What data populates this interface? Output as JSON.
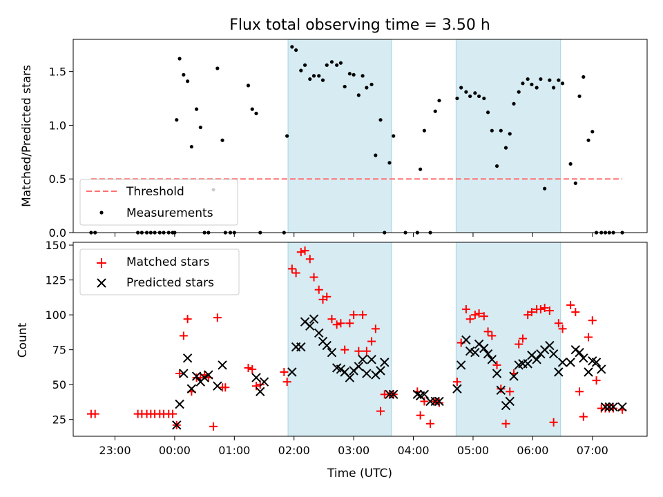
{
  "chart_data": [
    {
      "type": "scatter",
      "title": "Flux total observing time = 3.50 h",
      "xlabel": "",
      "ylabel": "Matched/Predicted stars",
      "xlim": [
        "22:18",
        "07:55"
      ],
      "ylim": [
        0,
        1.8
      ],
      "x_ticks": [
        "23:00",
        "00:00",
        "01:00",
        "02:00",
        "03:00",
        "04:00",
        "05:00",
        "06:00",
        "07:00"
      ],
      "y_ticks": [
        "0.0",
        "0.5",
        "1.0",
        "1.5"
      ],
      "shaded_intervals": [
        [
          "01:54",
          "03:38"
        ],
        [
          "04:43",
          "06:28"
        ]
      ],
      "shade_color": "#add8e6",
      "legend": {
        "position": "lower-left",
        "entries": [
          "Threshold",
          "Measurements"
        ]
      },
      "series": [
        {
          "name": "Threshold",
          "kind": "dashed-line",
          "color": "#ff7070",
          "x": [
            "22:36",
            "07:30"
          ],
          "values": [
            0.5,
            0.5
          ]
        },
        {
          "name": "Measurements",
          "kind": "points",
          "color": "#000000",
          "x": [
            "22:36",
            "22:40",
            "23:23",
            "23:27",
            "23:32",
            "23:36",
            "23:40",
            "23:45",
            "23:49",
            "23:54",
            "23:58",
            "00:02",
            "00:00",
            "00:05",
            "00:09",
            "00:13",
            "00:17",
            "00:22",
            "00:26",
            "00:30",
            "00:34",
            "00:39",
            "00:43",
            "00:48",
            "00:51",
            "00:56",
            "01:00",
            "01:14",
            "01:18",
            "01:22",
            "01:26",
            "01:50",
            "01:53",
            "01:58",
            "02:02",
            "02:07",
            "02:11",
            "02:16",
            "02:20",
            "02:25",
            "02:29",
            "02:33",
            "02:38",
            "02:43",
            "02:47",
            "02:51",
            "02:56",
            "03:00",
            "03:05",
            "03:09",
            "03:13",
            "03:18",
            "03:22",
            "03:27",
            "03:31",
            "03:36",
            "03:40",
            "03:52",
            "04:04",
            "04:07",
            "04:11",
            "04:17",
            "04:22",
            "04:26",
            "04:44",
            "04:48",
            "04:53",
            "04:57",
            "05:02",
            "05:06",
            "05:11",
            "05:15",
            "05:19",
            "05:24",
            "05:28",
            "05:33",
            "05:37",
            "05:41",
            "05:46",
            "05:50",
            "05:55",
            "05:59",
            "06:04",
            "06:08",
            "06:12",
            "06:17",
            "06:21",
            "06:26",
            "06:30",
            "06:38",
            "06:43",
            "06:47",
            "06:51",
            "06:56",
            "07:00",
            "07:04",
            "07:09",
            "07:13",
            "07:17",
            "07:21",
            "07:30"
          ],
          "values": [
            0.0,
            0.0,
            0.0,
            0.0,
            0.0,
            0.0,
            0.0,
            0.0,
            0.0,
            0.0,
            0.0,
            1.05,
            0.0,
            1.62,
            1.47,
            1.41,
            0.8,
            1.15,
            0.98,
            0.0,
            0.0,
            0.4,
            1.53,
            0.86,
            0.0,
            0.0,
            0.0,
            1.37,
            1.15,
            1.11,
            0.0,
            0.0,
            0.9,
            1.73,
            1.7,
            1.51,
            1.56,
            1.43,
            1.46,
            1.46,
            1.42,
            1.56,
            1.59,
            1.56,
            1.58,
            1.36,
            1.48,
            1.47,
            1.28,
            1.46,
            1.35,
            1.38,
            0.72,
            1.05,
            0.0,
            0.65,
            0.9,
            0.0,
            0.0,
            0.59,
            0.95,
            0.0,
            1.13,
            1.23,
            1.25,
            1.35,
            1.31,
            1.27,
            1.3,
            1.27,
            1.25,
            1.12,
            0.95,
            0.62,
            0.95,
            0.79,
            0.92,
            1.2,
            1.31,
            1.39,
            1.43,
            1.38,
            1.35,
            1.43,
            0.41,
            1.42,
            1.35,
            1.42,
            1.39,
            0.64,
            0.46,
            1.27,
            1.45,
            0.86,
            0.94,
            0.0,
            0.0,
            0.0,
            0.0,
            0.0,
            0.0
          ]
        }
      ]
    },
    {
      "type": "scatter",
      "title": "",
      "xlabel": "Time (UTC)",
      "ylabel": "Count",
      "xlim": [
        "22:18",
        "07:55"
      ],
      "ylim": [
        13,
        152
      ],
      "x_ticks": [
        "23:00",
        "00:00",
        "01:00",
        "02:00",
        "03:00",
        "04:00",
        "05:00",
        "06:00",
        "07:00"
      ],
      "y_ticks": [
        "25",
        "50",
        "75",
        "100",
        "125",
        "150"
      ],
      "shaded_intervals": [
        [
          "01:54",
          "03:38"
        ],
        [
          "04:43",
          "06:28"
        ]
      ],
      "shade_color": "#add8e6",
      "legend": {
        "position": "upper-left",
        "entries": [
          "Matched stars",
          "Predicted stars"
        ]
      },
      "series": [
        {
          "name": "Matched stars",
          "kind": "plus",
          "color": "#ff0000",
          "x": [
            "22:36",
            "22:40",
            "23:23",
            "23:27",
            "23:32",
            "23:36",
            "23:40",
            "23:45",
            "23:49",
            "23:54",
            "23:58",
            "00:02",
            "00:05",
            "00:09",
            "00:13",
            "00:17",
            "00:22",
            "00:26",
            "00:30",
            "00:34",
            "00:39",
            "00:43",
            "00:48",
            "00:51",
            "01:14",
            "01:18",
            "01:22",
            "01:26",
            "01:50",
            "01:53",
            "01:58",
            "02:02",
            "02:07",
            "02:11",
            "02:16",
            "02:20",
            "02:25",
            "02:29",
            "02:33",
            "02:38",
            "02:43",
            "02:47",
            "02:51",
            "02:56",
            "03:00",
            "03:05",
            "03:09",
            "03:13",
            "03:18",
            "03:22",
            "03:27",
            "03:31",
            "03:36",
            "03:40",
            "04:04",
            "04:07",
            "04:11",
            "04:17",
            "04:22",
            "04:26",
            "04:44",
            "04:48",
            "04:53",
            "04:57",
            "05:02",
            "05:06",
            "05:11",
            "05:15",
            "05:19",
            "05:24",
            "05:28",
            "05:33",
            "05:37",
            "05:41",
            "05:46",
            "05:50",
            "05:55",
            "05:59",
            "06:04",
            "06:08",
            "06:12",
            "06:17",
            "06:21",
            "06:26",
            "06:30",
            "06:38",
            "06:43",
            "06:47",
            "06:51",
            "06:56",
            "07:00",
            "07:04",
            "07:09",
            "07:13",
            "07:17",
            "07:21",
            "07:30"
          ],
          "values": [
            29,
            29,
            29,
            29,
            29,
            29,
            29,
            29,
            29,
            29,
            29,
            21,
            58,
            85,
            97,
            45,
            55,
            55,
            57,
            55,
            20,
            98,
            48,
            48,
            62,
            61,
            49,
            50,
            59,
            52,
            133,
            130,
            145,
            146,
            140,
            127,
            118,
            111,
            113,
            97,
            93,
            94,
            75,
            94,
            100,
            74,
            100,
            74,
            81,
            90,
            31,
            43,
            43,
            43,
            45,
            28,
            38,
            22,
            38,
            37,
            52,
            80,
            104,
            97,
            100,
            101,
            99,
            88,
            85,
            64,
            47,
            22,
            45,
            58,
            79,
            83,
            100,
            102,
            104,
            104,
            105,
            103,
            23,
            94,
            90,
            107,
            102,
            45,
            27,
            84,
            96,
            53,
            33,
            33,
            33,
            33,
            32
          ]
        },
        {
          "name": "Predicted stars",
          "kind": "x",
          "color": "#000000",
          "x": [
            "00:02",
            "00:05",
            "00:09",
            "00:13",
            "00:17",
            "00:22",
            "00:26",
            "00:30",
            "00:34",
            "00:43",
            "00:48",
            "01:22",
            "01:26",
            "01:30",
            "01:58",
            "02:02",
            "02:07",
            "02:11",
            "02:16",
            "02:20",
            "02:25",
            "02:29",
            "02:33",
            "02:38",
            "02:43",
            "02:47",
            "02:51",
            "02:56",
            "03:00",
            "03:05",
            "03:09",
            "03:13",
            "03:18",
            "03:22",
            "03:27",
            "03:31",
            "03:36",
            "03:40",
            "04:04",
            "04:07",
            "04:11",
            "04:17",
            "04:22",
            "04:26",
            "04:44",
            "04:48",
            "04:53",
            "04:57",
            "05:02",
            "05:06",
            "05:11",
            "05:15",
            "05:19",
            "05:24",
            "05:28",
            "05:33",
            "05:37",
            "05:41",
            "05:46",
            "05:50",
            "05:55",
            "05:59",
            "06:04",
            "06:08",
            "06:12",
            "06:17",
            "06:21",
            "06:26",
            "06:30",
            "06:38",
            "06:43",
            "06:47",
            "06:51",
            "06:56",
            "07:00",
            "07:04",
            "07:09",
            "07:13",
            "07:17",
            "07:21",
            "07:30"
          ],
          "values": [
            21,
            36,
            58,
            69,
            47,
            56,
            52,
            55,
            57,
            49,
            64,
            55,
            45,
            52,
            59,
            77,
            77,
            95,
            92,
            97,
            87,
            81,
            78,
            73,
            62,
            61,
            59,
            55,
            60,
            63,
            68,
            58,
            68,
            57,
            60,
            66,
            43,
            43,
            43,
            42,
            43,
            38,
            38,
            38,
            47,
            64,
            82,
            74,
            73,
            79,
            76,
            72,
            68,
            58,
            46,
            35,
            38,
            56,
            64,
            65,
            65,
            71,
            68,
            72,
            75,
            78,
            72,
            59,
            66,
            66,
            75,
            73,
            69,
            59,
            67,
            66,
            61,
            34,
            34,
            34,
            34
          ]
        }
      ]
    }
  ]
}
